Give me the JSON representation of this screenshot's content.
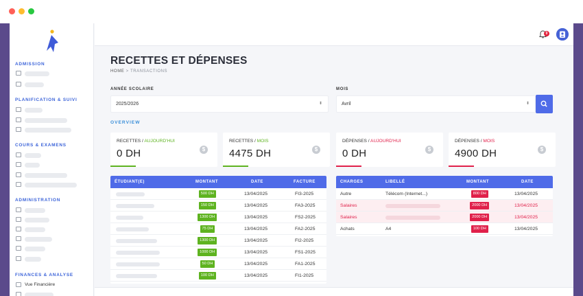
{
  "window": {
    "controls": [
      "close",
      "minimize",
      "maximize"
    ]
  },
  "sidebar": {
    "sections": [
      {
        "title": "ADMISSION",
        "items": [
          {
            "icon": "document-icon",
            "label": ""
          },
          {
            "icon": "tray-icon",
            "label": ""
          }
        ]
      },
      {
        "title": "PLANIFICATION & SUIVI",
        "items": [
          {
            "icon": "calendar-icon",
            "label": ""
          },
          {
            "icon": "calendar-icon",
            "label": ""
          },
          {
            "icon": "list-icon",
            "label": ""
          }
        ]
      },
      {
        "title": "COURS & EXAMENS",
        "items": [
          {
            "icon": "book-icon",
            "label": ""
          },
          {
            "icon": "clock-icon",
            "label": ""
          },
          {
            "icon": "pencil-icon",
            "label": ""
          },
          {
            "icon": "pencil-icon",
            "label": ""
          }
        ]
      },
      {
        "title": "ADMINISTRATION",
        "items": [
          {
            "icon": "users-icon",
            "label": ""
          },
          {
            "icon": "folder-icon",
            "label": ""
          },
          {
            "icon": "star-icon",
            "label": ""
          },
          {
            "icon": "users-icon",
            "label": ""
          },
          {
            "icon": "chart-icon",
            "label": ""
          },
          {
            "icon": "building-icon",
            "label": ""
          }
        ]
      },
      {
        "title": "FINANCES & ANALYSE",
        "items": [
          {
            "icon": "wallet-icon",
            "label": "Vue Financière"
          },
          {
            "icon": "wallet-icon",
            "label": ""
          }
        ]
      }
    ]
  },
  "topbar": {
    "notification_count": "0",
    "icons": [
      "bell-icon",
      "user-icon"
    ]
  },
  "page": {
    "title": "RECETTES ET DÉPENSES",
    "breadcrumb_home": "HOME",
    "breadcrumb_sep": " > ",
    "breadcrumb_current": "TRANSACTIONS"
  },
  "filters": {
    "year_label": "ANNÉE SCOLAIRE",
    "year_value": "2025/2026",
    "month_label": "MOIS",
    "month_value": "Avril",
    "arrow": "⬍"
  },
  "overview_label": "OVERVIEW",
  "cards": [
    {
      "prefix": "RECETTES / ",
      "suffix": "AUJOURD'HUI",
      "amount": "0 DH",
      "color": "#5eb320"
    },
    {
      "prefix": "RECETTES / ",
      "suffix": "MOIS",
      "amount": "4475 DH",
      "color": "#5eb320"
    },
    {
      "prefix": "DÉPENSES / ",
      "suffix": "AUJOURD'HUI",
      "amount": "0 DH",
      "color": "#e0204a"
    },
    {
      "prefix": "DÉPENSES / ",
      "suffix": "MOIS",
      "amount": "4900 DH",
      "color": "#e0204a"
    }
  ],
  "coin_symbol": "$",
  "recettes_table": {
    "headers": [
      "ÉTUDIANT(E)",
      "MONTANT",
      "DATE",
      "FACTURE"
    ],
    "rows": [
      {
        "student": "",
        "amount": "500 DH",
        "date": "13/04/2025",
        "invoice": "FI3-2025"
      },
      {
        "student": "",
        "amount": "150 DH",
        "date": "13/04/2025",
        "invoice": "FA3-2025"
      },
      {
        "student": "",
        "amount": "1300 DH",
        "date": "13/04/2025",
        "invoice": "FS2-2025"
      },
      {
        "student": "",
        "amount": "75 DH",
        "date": "13/04/2025",
        "invoice": "FA2-2025"
      },
      {
        "student": "",
        "amount": "1300 DH",
        "date": "13/04/2025",
        "invoice": "FI2-2025"
      },
      {
        "student": "",
        "amount": "1000 DH",
        "date": "13/04/2025",
        "invoice": "FS1-2025"
      },
      {
        "student": "",
        "amount": "50 DH",
        "date": "13/04/2025",
        "invoice": "FA1-2025"
      },
      {
        "student": "",
        "amount": "100 DH",
        "date": "13/04/2025",
        "invoice": "FI1-2025"
      }
    ]
  },
  "depenses_table": {
    "headers": [
      "CHARGES",
      "LIBELLÉ",
      "MONTANT",
      "DATE"
    ],
    "rows": [
      {
        "charge": "Autre",
        "label": "Télécom (Internet...)",
        "amount": "800 DH",
        "date": "13/04/2025",
        "highlight": false
      },
      {
        "charge": "Salaires",
        "label": "",
        "amount": "2000 DH",
        "date": "13/04/2025",
        "highlight": true
      },
      {
        "charge": "Salaires",
        "label": "",
        "amount": "2000 DH",
        "date": "13/04/2025",
        "highlight": true
      },
      {
        "charge": "Achats",
        "label": "A4",
        "amount": "100 DH",
        "date": "13/04/2025",
        "highlight": false
      }
    ]
  }
}
